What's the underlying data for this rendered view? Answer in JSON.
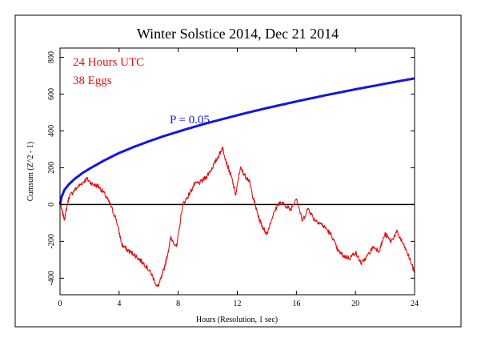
{
  "colors": {
    "cumsum": "#e01010",
    "p_envelope": "#1515e0",
    "baseline": "#000000",
    "background": "#ffffff"
  },
  "chart_data": {
    "type": "line",
    "title": "Winter Solstice 2014, Dec 21 2014",
    "xlabel": "Hours (Resolution, 1 sec)",
    "ylabel": "Cumsum (Z^2 - 1)",
    "xlim": [
      0,
      24
    ],
    "ylim": [
      -490,
      850
    ],
    "x_ticks": [
      0,
      4,
      8,
      12,
      16,
      20,
      24
    ],
    "y_ticks": [
      -400,
      -200,
      0,
      200,
      400,
      600,
      800
    ],
    "grid": false,
    "annotations": {
      "line1": "24 Hours UTC",
      "line2": "38 Eggs",
      "p_label": "P = 0.05"
    },
    "series": [
      {
        "role": "cumulative deviation",
        "color": "#e01010",
        "x": [
          0,
          0.3,
          0.6,
          1.0,
          1.4,
          1.8,
          2.2,
          2.6,
          3.0,
          3.4,
          3.8,
          4.2,
          4.6,
          5.0,
          5.4,
          5.8,
          6.2,
          6.6,
          6.9,
          7.2,
          7.5,
          7.9,
          8.3,
          8.7,
          9.1,
          9.5,
          9.9,
          10.3,
          10.7,
          11.0,
          11.3,
          11.6,
          11.9,
          12.2,
          12.5,
          12.8,
          13.1,
          13.4,
          13.7,
          14.0,
          14.4,
          14.8,
          15.2,
          15.6,
          16.0,
          16.4,
          16.8,
          17.2,
          17.6,
          18.0,
          18.4,
          18.8,
          19.2,
          19.6,
          20.0,
          20.4,
          20.8,
          21.2,
          21.6,
          22.0,
          22.4,
          22.8,
          23.2,
          23.6,
          24.0
        ],
        "y": [
          0,
          -80,
          40,
          80,
          110,
          140,
          110,
          100,
          60,
          0,
          -80,
          -220,
          -250,
          -270,
          -300,
          -330,
          -380,
          -450,
          -390,
          -300,
          -180,
          -230,
          0,
          50,
          110,
          120,
          150,
          200,
          260,
          310,
          220,
          150,
          50,
          200,
          160,
          130,
          30,
          -60,
          -120,
          -160,
          -60,
          10,
          0,
          -30,
          40,
          -90,
          -20,
          -80,
          -100,
          -130,
          -170,
          -250,
          -280,
          -290,
          -260,
          -320,
          -280,
          -230,
          -250,
          -160,
          -200,
          -150,
          -210,
          -280,
          -370
        ]
      },
      {
        "role": "significance envelope",
        "color": "#1515e0",
        "x": [
          0,
          0.1,
          0.3,
          0.6,
          1,
          1.5,
          2,
          3,
          4,
          5,
          6,
          7,
          8,
          9,
          10,
          11,
          12,
          13,
          14,
          15,
          16,
          17,
          18,
          19,
          20,
          21,
          22,
          23,
          24
        ],
        "y": [
          0,
          40,
          80,
          110,
          140,
          170,
          195,
          240,
          280,
          313,
          343,
          371,
          396,
          420,
          443,
          464,
          485,
          505,
          524,
          542,
          560,
          577,
          594,
          610,
          626,
          641,
          656,
          671,
          685
        ]
      }
    ]
  }
}
